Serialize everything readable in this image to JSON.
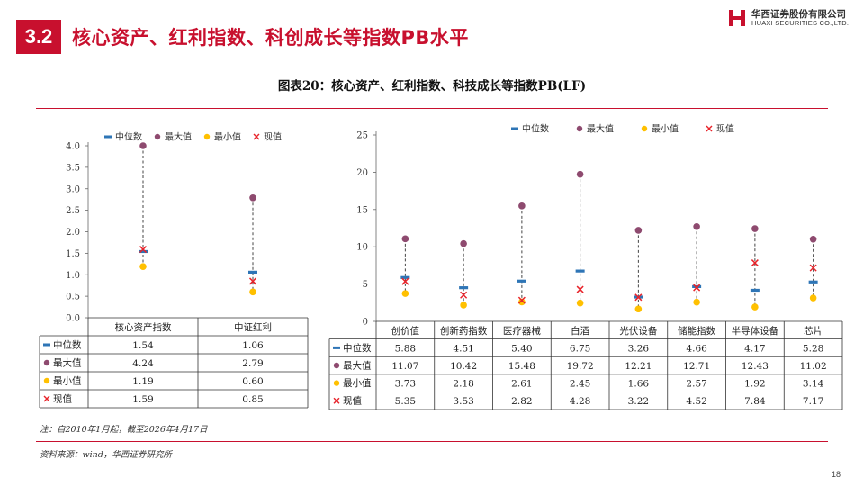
{
  "header": {
    "section_number": "3.2",
    "title": "核心资产、红利指数、科创成长等指数PB水平",
    "logo_cn": "华西证券股份有限公司",
    "logo_en": "HUAXI SECURITIES CO.,LTD."
  },
  "figure_title": "图表20：核心资产、红利指数、科技成长等指数PB(LF)",
  "note": "注：自2010年1月起，截至2026年4月17日",
  "source": "资料来源：wind，华西证券研究所",
  "page_number": "18",
  "colors": {
    "accent": "#c8102e",
    "median": "#2e75b6",
    "max": "#8e4a6f",
    "min": "#ffc000",
    "current": "#e8242b"
  },
  "legend": {
    "median": "中位数",
    "max": "最大值",
    "min": "最小值",
    "current": "现值"
  },
  "chart_data": [
    {
      "type": "range",
      "categories": [
        "核心资产指数",
        "中证红利"
      ],
      "ylim": [
        0,
        4.0
      ],
      "ytick_step": 0.5,
      "series": [
        {
          "name": "中位数",
          "values": [
            1.54,
            1.06
          ]
        },
        {
          "name": "最大值",
          "values": [
            4.24,
            2.79
          ]
        },
        {
          "name": "最小值",
          "values": [
            1.19,
            0.6
          ]
        },
        {
          "name": "现值",
          "values": [
            1.59,
            0.85
          ]
        }
      ],
      "table_rows": [
        [
          "1.54",
          "1.06"
        ],
        [
          "4.24",
          "2.79"
        ],
        [
          "1.19",
          "0.60"
        ],
        [
          "1.59",
          "0.85"
        ]
      ]
    },
    {
      "type": "range",
      "categories": [
        "创价值",
        "创新药指数",
        "医疗器械",
        "白酒",
        "光伏设备",
        "储能指数",
        "半导体设备",
        "芯片"
      ],
      "ylim": [
        0,
        25
      ],
      "ytick_step": 5,
      "series": [
        {
          "name": "中位数",
          "values": [
            5.88,
            4.51,
            5.4,
            6.75,
            3.26,
            4.66,
            4.17,
            5.28
          ]
        },
        {
          "name": "最大值",
          "values": [
            11.07,
            10.42,
            15.48,
            19.72,
            12.21,
            12.71,
            12.43,
            11.02
          ]
        },
        {
          "name": "最小值",
          "values": [
            3.73,
            2.18,
            2.61,
            2.45,
            1.66,
            2.57,
            1.92,
            3.14
          ]
        },
        {
          "name": "现值",
          "values": [
            5.35,
            3.53,
            2.82,
            4.28,
            3.22,
            4.52,
            7.84,
            7.17
          ]
        }
      ],
      "table_rows": [
        [
          "5.88",
          "4.51",
          "5.40",
          "6.75",
          "3.26",
          "4.66",
          "4.17",
          "5.28"
        ],
        [
          "11.07",
          "10.42",
          "15.48",
          "19.72",
          "12.21",
          "12.71",
          "12.43",
          "11.02"
        ],
        [
          "3.73",
          "2.18",
          "2.61",
          "2.45",
          "1.66",
          "2.57",
          "1.92",
          "3.14"
        ],
        [
          "5.35",
          "3.53",
          "2.82",
          "4.28",
          "3.22",
          "4.52",
          "7.84",
          "7.17"
        ]
      ]
    }
  ]
}
